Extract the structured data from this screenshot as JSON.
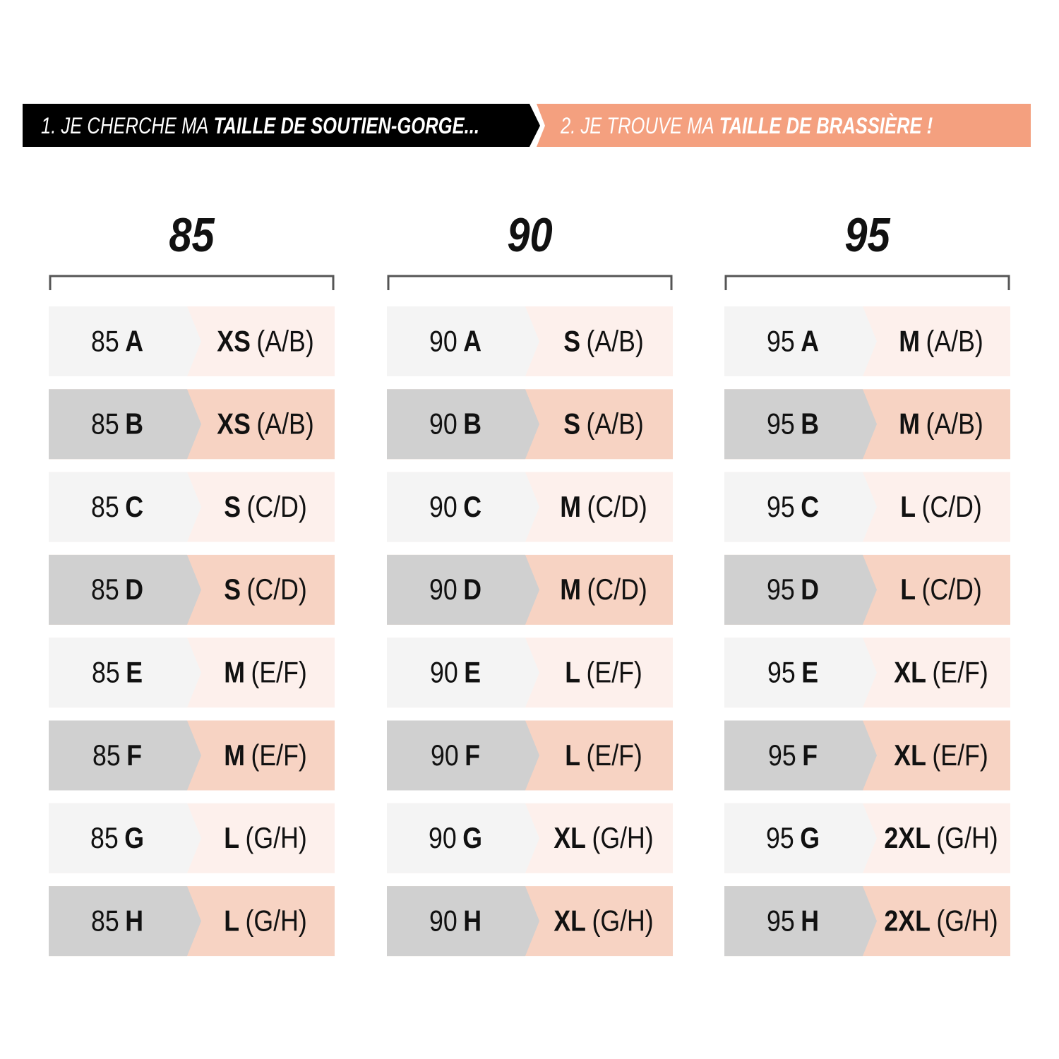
{
  "header": {
    "step1": {
      "prefix": "1. JE CHERCHE MA",
      "emphasis": "TAILLE DE SOUTIEN-GORGE..."
    },
    "step2": {
      "prefix": "2. JE TROUVE MA",
      "emphasis": "TAILLE DE BRASSIÈRE !"
    }
  },
  "columns": [
    {
      "band": "85",
      "rows": [
        {
          "band": "85",
          "cup": "A",
          "size": "XS",
          "cups": "(A/B)"
        },
        {
          "band": "85",
          "cup": "B",
          "size": "XS",
          "cups": "(A/B)"
        },
        {
          "band": "85",
          "cup": "C",
          "size": "S",
          "cups": "(C/D)"
        },
        {
          "band": "85",
          "cup": "D",
          "size": "S",
          "cups": "(C/D)"
        },
        {
          "band": "85",
          "cup": "E",
          "size": "M",
          "cups": "(E/F)"
        },
        {
          "band": "85",
          "cup": "F",
          "size": "M",
          "cups": "(E/F)"
        },
        {
          "band": "85",
          "cup": "G",
          "size": "L",
          "cups": "(G/H)"
        },
        {
          "band": "85",
          "cup": "H",
          "size": "L",
          "cups": "(G/H)"
        }
      ]
    },
    {
      "band": "90",
      "rows": [
        {
          "band": "90",
          "cup": "A",
          "size": "S",
          "cups": "(A/B)"
        },
        {
          "band": "90",
          "cup": "B",
          "size": "S",
          "cups": "(A/B)"
        },
        {
          "band": "90",
          "cup": "C",
          "size": "M",
          "cups": "(C/D)"
        },
        {
          "band": "90",
          "cup": "D",
          "size": "M",
          "cups": "(C/D)"
        },
        {
          "band": "90",
          "cup": "E",
          "size": "L",
          "cups": "(E/F)"
        },
        {
          "band": "90",
          "cup": "F",
          "size": "L",
          "cups": "(E/F)"
        },
        {
          "band": "90",
          "cup": "G",
          "size": "XL",
          "cups": "(G/H)"
        },
        {
          "band": "90",
          "cup": "H",
          "size": "XL",
          "cups": "(G/H)"
        }
      ]
    },
    {
      "band": "95",
      "rows": [
        {
          "band": "95",
          "cup": "A",
          "size": "M",
          "cups": "(A/B)"
        },
        {
          "band": "95",
          "cup": "B",
          "size": "M",
          "cups": "(A/B)"
        },
        {
          "band": "95",
          "cup": "C",
          "size": "L",
          "cups": "(C/D)"
        },
        {
          "band": "95",
          "cup": "D",
          "size": "L",
          "cups": "(C/D)"
        },
        {
          "band": "95",
          "cup": "E",
          "size": "XL",
          "cups": "(E/F)"
        },
        {
          "band": "95",
          "cup": "F",
          "size": "XL",
          "cups": "(E/F)"
        },
        {
          "band": "95",
          "cup": "G",
          "size": "2XL",
          "cups": "(G/H)"
        },
        {
          "band": "95",
          "cup": "H",
          "size": "2XL",
          "cups": "(G/H)"
        }
      ]
    }
  ]
}
